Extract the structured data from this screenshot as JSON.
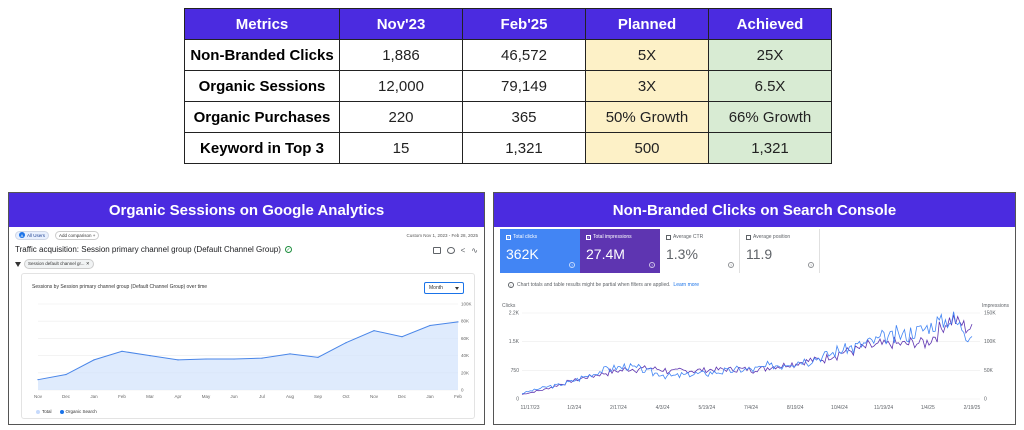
{
  "table": {
    "headers": [
      "Metrics",
      "Nov'23",
      "Feb'25",
      "Planned",
      "Achieved"
    ],
    "rows": [
      {
        "metric": "Non-Branded Clicks",
        "nov23": "1,886",
        "feb25": "46,572",
        "planned": "5X",
        "achieved": "25X"
      },
      {
        "metric": "Organic Sessions",
        "nov23": "12,000",
        "feb25": "79,149",
        "planned": "3X",
        "achieved": "6.5X"
      },
      {
        "metric": "Organic Purchases",
        "nov23": "220",
        "feb25": "365",
        "planned": "50% Growth",
        "achieved": "66% Growth"
      },
      {
        "metric": "Keyword in Top 3",
        "nov23": "15",
        "feb25": "1,321",
        "planned": "500",
        "achieved": "1,321"
      }
    ],
    "colors": {
      "header": "#4b2be0",
      "planned": "#fdf1c7",
      "achieved": "#d8ebd3"
    }
  },
  "ga": {
    "title": "Organic Sessions on Google Analytics",
    "chip_all_users": "All Users",
    "chip_add_comparison": "Add comparison +",
    "date_range": "Custom  Nov 1, 2023 - Feb 28, 2025",
    "heading": "Traffic acquisition: Session primary channel group (Default Channel Group)",
    "filter": "Session default channel gr...",
    "card_title": "Sessions by Session primary channel group (Default Channel Group) over time",
    "dropdown": "Month",
    "legend": {
      "total": "Total",
      "organic": "Organic Search"
    },
    "icons": [
      "filter-icon",
      "check-circle-icon",
      "chart-icon",
      "compare-icon",
      "share-icon",
      "insights-icon"
    ]
  },
  "gsc": {
    "title": "Non-Branded Clicks on Search Console",
    "tiles": [
      {
        "label": "Total clicks",
        "value": "362K",
        "checked": true
      },
      {
        "label": "Total impressions",
        "value": "27.4M",
        "checked": true
      },
      {
        "label": "Average CTR",
        "value": "1.3%",
        "checked": false
      },
      {
        "label": "Average position",
        "value": "11.9",
        "checked": false
      }
    ],
    "notice": "Chart totals and table results might be partial when filters are applied.",
    "learn_more": "Learn more",
    "colors": {
      "clicks": "#4285f4",
      "impressions": "#5e35b1"
    }
  },
  "chart_data": [
    {
      "type": "area",
      "title": "Sessions by Session primary channel group (Default Channel Group) over time",
      "categories": [
        "Nov",
        "Dec",
        "Jan",
        "Feb",
        "Mar",
        "Apr",
        "May",
        "Jun",
        "Jul",
        "Aug",
        "Sep",
        "Oct",
        "Nov",
        "Dec",
        "Jan",
        "Feb"
      ],
      "y_ticks": [
        "0",
        "20K",
        "40K",
        "60K",
        "80K",
        "100K"
      ],
      "ylim": [
        0,
        100000
      ],
      "series": [
        {
          "name": "Organic Search",
          "values": [
            12000,
            18000,
            35000,
            45000,
            40000,
            35000,
            36000,
            36000,
            37000,
            42000,
            38000,
            55000,
            69000,
            62000,
            75000,
            79149
          ]
        }
      ],
      "grid": true,
      "legend": "bottom-left"
    },
    {
      "type": "line",
      "x_ticks": [
        "11/17/23",
        "1/2/24",
        "2/17/24",
        "4/3/24",
        "5/19/24",
        "7/4/24",
        "8/19/24",
        "10/4/24",
        "11/19/24",
        "1/4/25",
        "2/19/25"
      ],
      "left_axis": {
        "label": "Clicks",
        "ticks": [
          "0",
          "750",
          "1.5K",
          "2.2K"
        ],
        "ylim": [
          0,
          2250
        ]
      },
      "right_axis": {
        "label": "Impressions",
        "ticks": [
          "0",
          "50K",
          "100K",
          "150K"
        ],
        "ylim": [
          0,
          150000
        ]
      },
      "series": [
        {
          "name": "Clicks",
          "axis": "left",
          "values": [
            150,
            300,
            400,
            600,
            800,
            850,
            700,
            600,
            650,
            700,
            750,
            800,
            900,
            1000,
            1100,
            1300,
            1450,
            1600,
            1700,
            1900,
            2100,
            1700
          ]
        },
        {
          "name": "Impressions",
          "axis": "right",
          "values": [
            8000,
            16000,
            28000,
            38000,
            46000,
            52000,
            54000,
            48000,
            50000,
            51000,
            52000,
            52000,
            58000,
            64000,
            70000,
            82000,
            90000,
            95000,
            96000,
            100000,
            140000,
            122000
          ]
        }
      ],
      "grid": true
    }
  ]
}
